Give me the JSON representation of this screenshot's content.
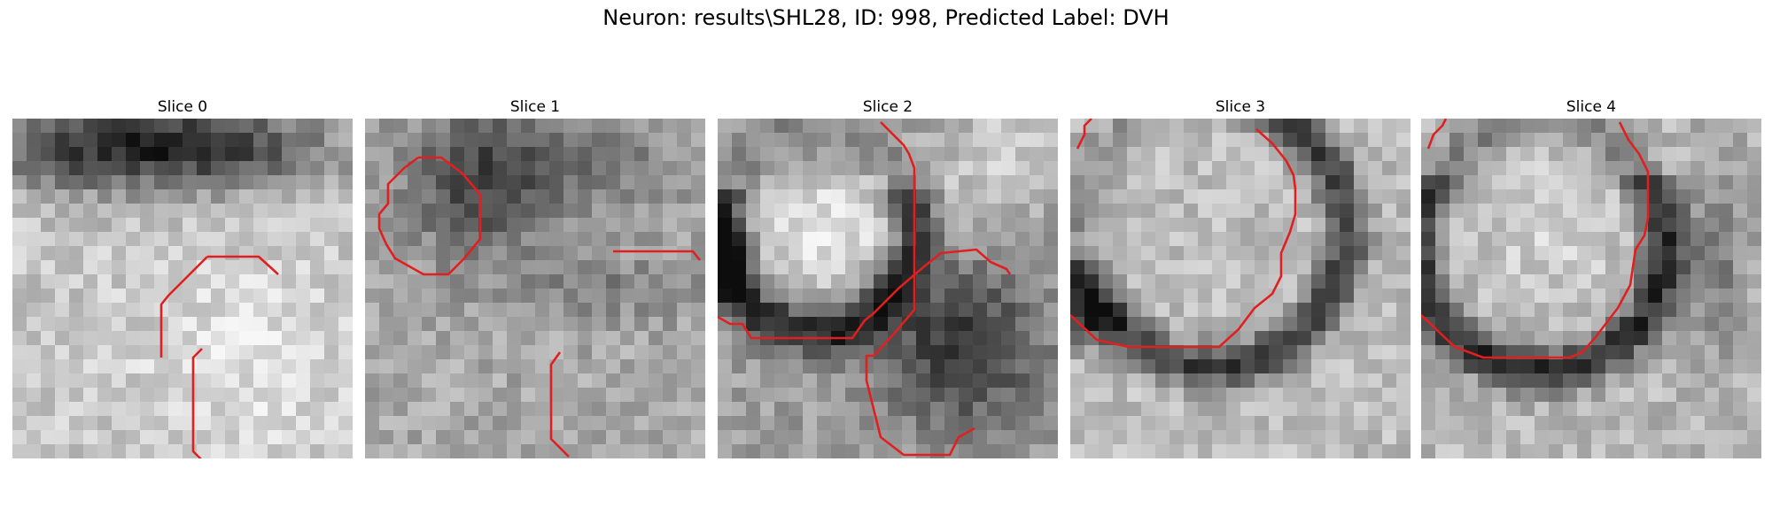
{
  "figure": {
    "title": "Neuron: results\\SHL28, ID: 998, Predicted Label: DVH"
  },
  "panels": [
    {
      "title": "Slice 0",
      "contour_color": "#e02020"
    },
    {
      "title": "Slice 1",
      "contour_color": "#e02020"
    },
    {
      "title": "Slice 2",
      "contour_color": "#e02020"
    },
    {
      "title": "Slice 3",
      "contour_color": "#e02020"
    },
    {
      "title": "Slice 4",
      "contour_color": "#e02020"
    }
  ]
}
